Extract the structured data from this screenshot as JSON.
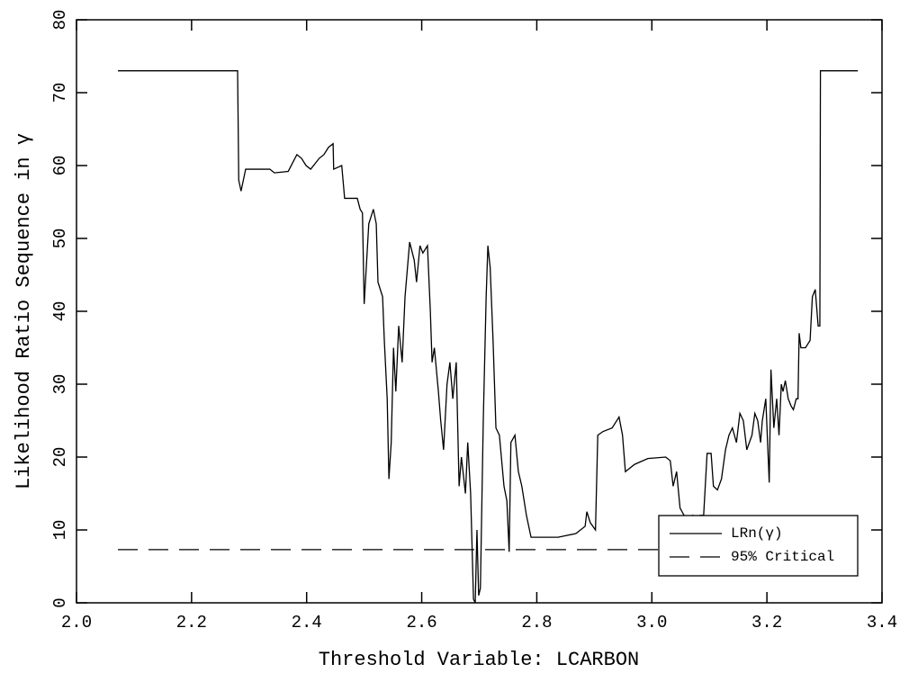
{
  "chart_data": {
    "type": "line",
    "xlabel": "Threshold Variable: LCARBON",
    "ylabel": "Likelihood Ratio Sequence in γ",
    "xlim": [
      2.0,
      3.4
    ],
    "xticks": [
      {
        "value": 2,
        "label": "2.0"
      },
      2.2,
      2.4,
      2.6,
      2.8,
      {
        "value": 3,
        "label": "3.0"
      },
      3.2,
      3.4
    ],
    "ylim": [
      0,
      80
    ],
    "yticks": [
      0,
      10,
      20,
      30,
      40,
      50,
      60,
      70,
      80
    ],
    "legend": "lower right",
    "series": [
      {
        "name": "LRn(γ)",
        "color": "#000000",
        "dash": "solid",
        "x": [
          2.072,
          2.28,
          2.282,
          2.286,
          2.294,
          2.336,
          2.344,
          2.368,
          2.383,
          2.391,
          2.399,
          2.407,
          2.422,
          2.43,
          2.438,
          2.446,
          2.447,
          2.461,
          2.466,
          2.488,
          2.493,
          2.497,
          2.5,
          2.508,
          2.516,
          2.521,
          2.524,
          2.532,
          2.535,
          2.54,
          2.543,
          2.547,
          2.551,
          2.555,
          2.56,
          2.566,
          2.571,
          2.579,
          2.587,
          2.591,
          2.597,
          2.602,
          2.61,
          2.615,
          2.618,
          2.622,
          2.629,
          2.633,
          2.638,
          2.644,
          2.649,
          2.654,
          2.66,
          2.665,
          2.669,
          2.676,
          2.68,
          2.685,
          2.69,
          2.693,
          2.696,
          2.699,
          2.702,
          2.707,
          2.712,
          2.715,
          2.719,
          2.724,
          2.729,
          2.735,
          2.743,
          2.748,
          2.752,
          2.755,
          2.762,
          2.768,
          2.774,
          2.782,
          2.79,
          2.837,
          2.868,
          2.884,
          2.887,
          2.893,
          2.902,
          2.906,
          2.915,
          2.931,
          2.943,
          2.949,
          2.954,
          2.97,
          2.993,
          3.024,
          3.032,
          3.037,
          3.043,
          3.049,
          3.056,
          3.064,
          3.071,
          3.079,
          3.084,
          3.09,
          3.096,
          3.103,
          3.107,
          3.114,
          3.121,
          3.128,
          3.134,
          3.14,
          3.147,
          3.153,
          3.159,
          3.165,
          3.174,
          3.179,
          3.184,
          3.189,
          3.192,
          3.198,
          3.204,
          3.207,
          3.212,
          3.217,
          3.221,
          3.225,
          3.228,
          3.232,
          3.237,
          3.242,
          3.246,
          3.251,
          3.254,
          3.256,
          3.259,
          3.267,
          3.275,
          3.279,
          3.284,
          3.289,
          3.292,
          3.293,
          3.358
        ],
        "values": [
          73,
          73,
          58,
          56.5,
          59.5,
          59.5,
          59,
          59.2,
          61.5,
          61,
          60,
          59.5,
          61,
          61.5,
          62.5,
          63,
          59.5,
          60,
          55.5,
          55.5,
          54,
          53.5,
          41,
          52,
          54,
          52,
          44,
          42,
          36,
          28,
          17,
          22,
          35,
          29,
          38,
          33,
          42,
          49.5,
          47,
          44,
          49,
          48,
          49,
          40,
          33,
          35,
          29,
          25,
          21,
          30,
          33,
          28,
          33,
          16,
          20,
          15,
          22,
          15,
          0.5,
          0,
          10,
          1,
          2,
          25,
          42,
          49,
          46,
          36,
          24,
          23,
          16,
          14,
          7,
          22,
          23,
          18,
          16,
          12,
          9,
          9,
          9.5,
          10.5,
          12.5,
          11,
          10,
          23,
          23.5,
          24,
          25.5,
          23,
          18,
          19,
          19.8,
          20,
          19.5,
          16,
          18,
          13,
          12,
          11.5,
          12,
          9.5,
          12,
          12,
          20.5,
          20.5,
          16,
          15.5,
          17,
          21,
          23,
          24,
          22,
          26,
          25,
          21,
          23,
          26,
          25,
          22,
          25,
          28,
          16.5,
          32,
          24,
          28,
          23,
          30,
          29,
          30.5,
          28,
          27,
          26.5,
          28,
          28,
          37,
          35,
          35,
          36,
          42,
          43,
          38,
          38,
          73,
          73
        ]
      },
      {
        "name": "95% Critical",
        "color": "#000000",
        "dash": "dashed",
        "x": [
          2.072,
          3.358
        ],
        "values": [
          7.3,
          7.3
        ]
      }
    ]
  }
}
